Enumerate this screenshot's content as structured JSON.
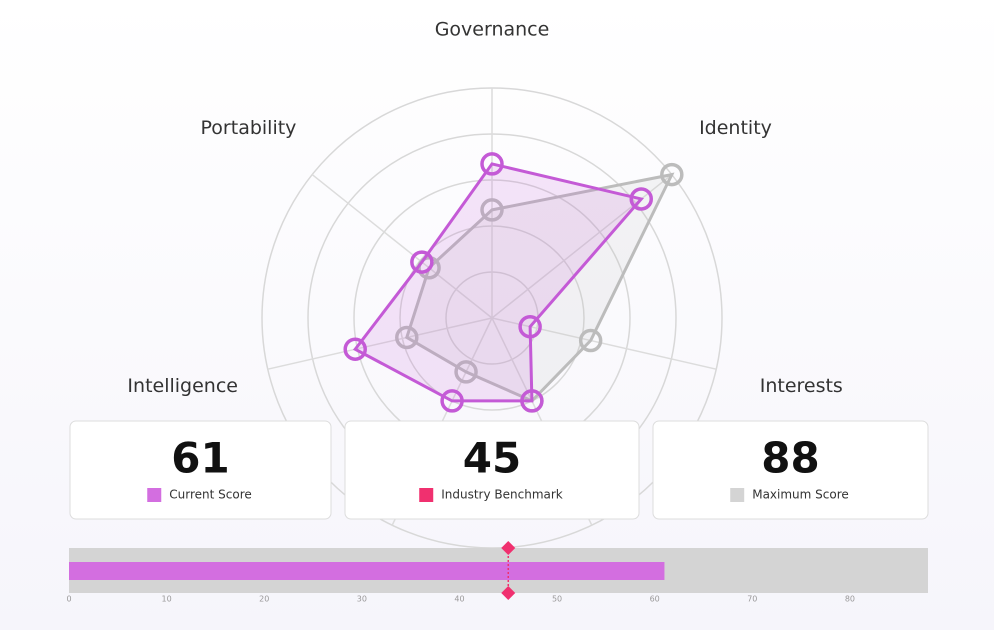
{
  "radar": {
    "type": "radar",
    "categories": [
      "Governance",
      "Identity",
      "Interests",
      null,
      null,
      "Intelligence",
      "Portability"
    ],
    "series": [
      {
        "color": "#bcbcbc",
        "values": [
          47,
          100,
          44,
          40,
          26,
          38,
          35
        ]
      },
      {
        "color": "#c45ad6",
        "values": [
          67,
          83,
          17,
          40,
          40,
          61,
          39
        ]
      }
    ],
    "rlim": [
      0,
      100
    ],
    "rticks": [
      20,
      40,
      60,
      80,
      100
    ],
    "grid": true
  },
  "cards": [
    {
      "value": 61,
      "label": "Current Score",
      "color": "#d36ee0"
    },
    {
      "value": 45,
      "label": "Industry Benchmark",
      "color": "#f0306f"
    },
    {
      "value": 88,
      "label": "Maximum Score",
      "color": "#d4d4d4"
    }
  ],
  "bullet": {
    "type": "bullet",
    "xlim": [
      0,
      88
    ],
    "xticks": [
      0,
      10,
      20,
      30,
      40,
      50,
      60,
      70,
      80
    ]
  }
}
